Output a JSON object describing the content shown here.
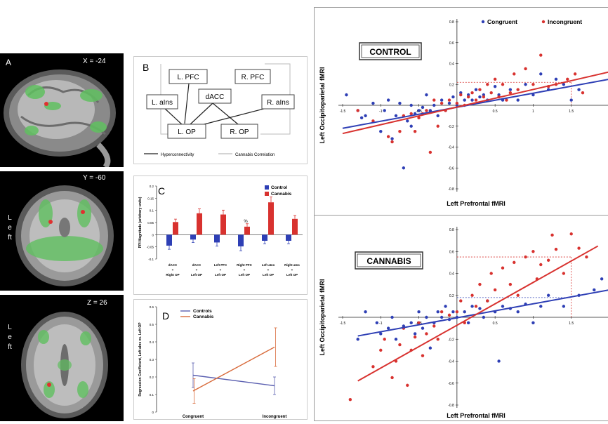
{
  "panelA": {
    "letter": "A",
    "coord1": "X = -24",
    "coord2": "Y = -60",
    "coord3": "Z = 26",
    "side2": "Left",
    "side3": "Left"
  },
  "panelB": {
    "letter": "B",
    "nodes": [
      "L. PFC",
      "R. PFC",
      "dACC",
      "L. aIns",
      "R. aIns",
      "L. OP",
      "R. OP"
    ],
    "legend_hyper": "Hyperconnectivity",
    "legend_cann": "Cannabis Correlation"
  },
  "colors": {
    "control": "#2e3fb5",
    "cannabis": "#d8322f",
    "congruent": "#2e3fb5",
    "incongruent": "#d8322f",
    "line_controls": "#5a5fb0",
    "line_cannabis": "#d86a3a"
  },
  "chart_data": [
    {
      "id": "C",
      "type": "bar",
      "letter": "C",
      "ylabel": "PPI Magnitude (arbitrary units)",
      "ylim": [
        -0.1,
        0.2
      ],
      "yticks": [
        "0.2",
        "0.15",
        "0.1",
        "0.05",
        "0",
        "-0.05",
        "-0.1"
      ],
      "categories": [
        [
          "dACC",
          "+",
          "Right OP"
        ],
        [
          "dACC",
          "+",
          "Left OP"
        ],
        [
          "Left PFC",
          "+",
          "Left OP"
        ],
        [
          "Right PFC",
          "+",
          "Left OP"
        ],
        [
          "Left aIns",
          "+",
          "Left OP"
        ],
        [
          "Right aIns",
          "+",
          "Left OP"
        ]
      ],
      "series": [
        {
          "name": "Control",
          "values": [
            -0.045,
            -0.02,
            -0.032,
            -0.048,
            -0.025,
            -0.025
          ],
          "errors": [
            0.015,
            0.012,
            0.015,
            0.018,
            0.012,
            0.012
          ]
        },
        {
          "name": "Cannabis",
          "values": [
            0.052,
            0.088,
            0.083,
            0.033,
            0.133,
            0.065
          ],
          "errors": [
            0.012,
            0.018,
            0.018,
            0.012,
            0.022,
            0.014
          ]
        }
      ],
      "annotation": "%"
    },
    {
      "id": "D",
      "type": "line",
      "letter": "D",
      "ylabel": "Regression Coefficient, Left aIns vs. Left OP",
      "ylim": [
        0,
        0.6
      ],
      "yticks": [
        "0.6",
        "0.5",
        "0.4",
        "0.3",
        "0.2",
        "0.1",
        "0"
      ],
      "categories": [
        "Congruent",
        "Incongruent"
      ],
      "series": [
        {
          "name": "Controls",
          "values": [
            0.21,
            0.15
          ],
          "errors": [
            0.07,
            0.05
          ]
        },
        {
          "name": "Cannabis",
          "values": [
            0.12,
            0.37
          ],
          "errors": [
            0.07,
            0.11
          ]
        }
      ]
    },
    {
      "id": "control",
      "type": "scatter",
      "label": "CONTROL",
      "xlabel": "Left Prefrontal fMRI",
      "ylabel": "Left Occipitoparietal fMRI",
      "xlim": [
        -1.5,
        2
      ],
      "ylim": [
        -0.8,
        0.8
      ],
      "xticks": [
        "-1.5",
        "-1",
        "-0.5",
        "0.5",
        "1",
        "1.5"
      ],
      "yticks": [
        "0.8",
        "0.6",
        "0.4",
        "0.2",
        "-0.2",
        "-0.4",
        "-0.6",
        "-0.8"
      ],
      "legend": [
        "Congruent",
        "Incongruent"
      ],
      "series": [
        {
          "name": "Congruent",
          "points": [
            [
              -1.45,
              0.1
            ],
            [
              -1.3,
              -0.05
            ],
            [
              -1.2,
              -0.1
            ],
            [
              -1.1,
              0.02
            ],
            [
              -1.0,
              -0.25
            ],
            [
              -0.95,
              -0.05
            ],
            [
              -0.9,
              0.05
            ],
            [
              -0.85,
              -0.32
            ],
            [
              -0.8,
              -0.1
            ],
            [
              -0.75,
              0.02
            ],
            [
              -0.7,
              -0.6
            ],
            [
              -0.65,
              -0.15
            ],
            [
              -0.6,
              0.0
            ],
            [
              -0.55,
              -0.08
            ],
            [
              -0.5,
              -0.05
            ],
            [
              -0.45,
              -0.02
            ],
            [
              -0.4,
              0.1
            ],
            [
              -0.35,
              -0.05
            ],
            [
              -0.3,
              0.0
            ],
            [
              -0.25,
              -0.1
            ],
            [
              -0.2,
              0.05
            ],
            [
              -0.15,
              -0.05
            ],
            [
              -0.1,
              0.02
            ],
            [
              -0.05,
              0.08
            ],
            [
              0.0,
              0.0
            ],
            [
              0.05,
              0.12
            ],
            [
              0.1,
              0.05
            ],
            [
              0.15,
              0.1
            ],
            [
              0.2,
              0.05
            ],
            [
              0.25,
              0.15
            ],
            [
              0.3,
              0.08
            ],
            [
              0.35,
              0.1
            ],
            [
              0.4,
              0.05
            ],
            [
              0.5,
              0.18
            ],
            [
              0.55,
              0.1
            ],
            [
              0.6,
              0.05
            ],
            [
              0.7,
              0.15
            ],
            [
              0.8,
              0.05
            ],
            [
              0.9,
              0.2
            ],
            [
              1.0,
              0.1
            ],
            [
              1.1,
              0.3
            ],
            [
              1.2,
              0.15
            ],
            [
              1.3,
              0.25
            ],
            [
              1.4,
              0.2
            ],
            [
              1.5,
              0.05
            ],
            [
              1.6,
              0.15
            ],
            [
              -1.25,
              -0.12
            ],
            [
              -0.6,
              -0.2
            ]
          ]
        },
        {
          "name": "Incongruent",
          "points": [
            [
              -1.3,
              -0.05
            ],
            [
              -1.1,
              -0.15
            ],
            [
              -0.9,
              -0.3
            ],
            [
              -0.85,
              -0.35
            ],
            [
              -0.75,
              -0.25
            ],
            [
              -0.7,
              -0.1
            ],
            [
              -0.6,
              -0.08
            ],
            [
              -0.55,
              -0.25
            ],
            [
              -0.5,
              -0.12
            ],
            [
              -0.45,
              -0.08
            ],
            [
              -0.4,
              -0.05
            ],
            [
              -0.3,
              0.05
            ],
            [
              -0.25,
              -0.2
            ],
            [
              -0.2,
              0.02
            ],
            [
              -0.15,
              -0.05
            ],
            [
              -0.1,
              0.05
            ],
            [
              0.0,
              0.02
            ],
            [
              0.05,
              0.1
            ],
            [
              0.1,
              0.0
            ],
            [
              0.15,
              0.08
            ],
            [
              0.2,
              0.12
            ],
            [
              0.25,
              0.05
            ],
            [
              0.3,
              0.15
            ],
            [
              0.35,
              0.08
            ],
            [
              0.4,
              0.2
            ],
            [
              0.45,
              0.12
            ],
            [
              0.5,
              0.25
            ],
            [
              0.55,
              0.08
            ],
            [
              0.6,
              0.2
            ],
            [
              0.7,
              0.12
            ],
            [
              0.75,
              0.3
            ],
            [
              0.8,
              0.15
            ],
            [
              0.9,
              0.35
            ],
            [
              1.0,
              0.2
            ],
            [
              1.1,
              0.48
            ],
            [
              1.2,
              0.18
            ],
            [
              1.3,
              0.2
            ],
            [
              1.45,
              0.25
            ],
            [
              1.55,
              0.3
            ],
            [
              1.65,
              0.12
            ],
            [
              -0.35,
              -0.45
            ],
            [
              0.65,
              0.05
            ]
          ]
        }
      ],
      "fit_lines": [
        {
          "name": "Congruent",
          "from": [
            -1.5,
            -0.22
          ],
          "to": [
            2,
            0.25
          ]
        },
        {
          "name": "Incongruent",
          "from": [
            -1.5,
            -0.27
          ],
          "to": [
            2,
            0.32
          ]
        }
      ],
      "guide": {
        "x": 1.5,
        "y": 0.22
      }
    },
    {
      "id": "cannabis",
      "type": "scatter",
      "label": "CANNABIS",
      "xlabel": "Left Prefrontal fMRI",
      "ylabel": "Left Occipitoparietal fMRI",
      "xlim": [
        -1.5,
        2
      ],
      "ylim": [
        -0.8,
        0.8
      ],
      "xticks": [
        "-1.5",
        "-1",
        "-0.5",
        "0.5",
        "1",
        "1.5",
        "2"
      ],
      "yticks": [
        "0.8",
        "0.6",
        "0.4",
        "0.2",
        "-0.2",
        "-0.4",
        "-0.6",
        "-0.8"
      ],
      "series": [
        {
          "name": "Congruent",
          "points": [
            [
              -1.2,
              0.05
            ],
            [
              -1.05,
              -0.05
            ],
            [
              -1.0,
              -0.15
            ],
            [
              -0.9,
              -0.1
            ],
            [
              -0.85,
              0.0
            ],
            [
              -0.8,
              -0.2
            ],
            [
              -0.7,
              -0.08
            ],
            [
              -0.6,
              -0.05
            ],
            [
              -0.55,
              -0.15
            ],
            [
              -0.5,
              0.05
            ],
            [
              -0.45,
              -0.1
            ],
            [
              -0.4,
              0.0
            ],
            [
              -0.3,
              -0.05
            ],
            [
              -0.25,
              0.05
            ],
            [
              -0.2,
              0.0
            ],
            [
              -0.15,
              0.1
            ],
            [
              -0.1,
              -0.02
            ],
            [
              -0.05,
              0.05
            ],
            [
              0.0,
              0.0
            ],
            [
              0.1,
              0.05
            ],
            [
              0.15,
              -0.05
            ],
            [
              0.2,
              0.1
            ],
            [
              0.3,
              0.08
            ],
            [
              0.35,
              0.0
            ],
            [
              0.4,
              0.15
            ],
            [
              0.5,
              0.05
            ],
            [
              0.55,
              -0.4
            ],
            [
              0.6,
              0.1
            ],
            [
              0.7,
              0.08
            ],
            [
              0.8,
              0.05
            ],
            [
              0.9,
              0.12
            ],
            [
              1.0,
              -0.05
            ],
            [
              1.1,
              0.1
            ],
            [
              1.2,
              0.2
            ],
            [
              1.4,
              0.1
            ],
            [
              1.6,
              0.2
            ],
            [
              1.8,
              0.25
            ],
            [
              1.9,
              0.35
            ],
            [
              -0.35,
              -0.28
            ],
            [
              -1.3,
              -0.2
            ]
          ]
        },
        {
          "name": "Incongruent",
          "points": [
            [
              -1.4,
              -0.75
            ],
            [
              -1.1,
              -0.45
            ],
            [
              -1.0,
              -0.3
            ],
            [
              -0.95,
              -0.2
            ],
            [
              -0.85,
              -0.55
            ],
            [
              -0.8,
              -0.4
            ],
            [
              -0.75,
              -0.25
            ],
            [
              -0.7,
              -0.1
            ],
            [
              -0.65,
              -0.62
            ],
            [
              -0.6,
              -0.3
            ],
            [
              -0.55,
              -0.18
            ],
            [
              -0.5,
              -0.05
            ],
            [
              -0.45,
              -0.35
            ],
            [
              -0.4,
              -0.15
            ],
            [
              -0.3,
              -0.08
            ],
            [
              -0.25,
              -0.2
            ],
            [
              -0.2,
              0.05
            ],
            [
              -0.1,
              0.02
            ],
            [
              0.0,
              0.05
            ],
            [
              0.05,
              0.15
            ],
            [
              0.1,
              -0.05
            ],
            [
              0.2,
              0.2
            ],
            [
              0.25,
              0.1
            ],
            [
              0.3,
              0.3
            ],
            [
              0.4,
              0.15
            ],
            [
              0.45,
              0.4
            ],
            [
              0.5,
              0.25
            ],
            [
              0.6,
              0.45
            ],
            [
              0.7,
              0.3
            ],
            [
              0.75,
              0.5
            ],
            [
              0.8,
              0.2
            ],
            [
              0.9,
              0.55
            ],
            [
              1.0,
              0.6
            ],
            [
              1.05,
              0.35
            ],
            [
              1.1,
              0.48
            ],
            [
              1.2,
              0.52
            ],
            [
              1.25,
              0.75
            ],
            [
              1.3,
              0.62
            ],
            [
              1.4,
              0.4
            ],
            [
              1.5,
              0.76
            ],
            [
              1.6,
              0.63
            ],
            [
              1.7,
              0.55
            ]
          ]
        }
      ],
      "fit_lines": [
        {
          "name": "Congruent",
          "from": [
            -1.3,
            -0.17
          ],
          "to": [
            2,
            0.25
          ]
        },
        {
          "name": "Incongruent",
          "from": [
            -1.3,
            -0.58
          ],
          "to": [
            1.85,
            0.65
          ]
        }
      ],
      "guide": {
        "x": 1.5,
        "y": 0.55,
        "y2": 0.18
      }
    }
  ]
}
